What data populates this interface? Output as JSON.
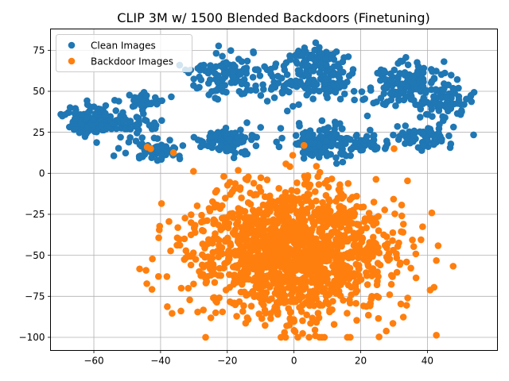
{
  "chart_data": {
    "type": "scatter",
    "title": "CLIP 3M w/ 1500 Blended Backdoors (Finetuning)",
    "xlabel": "",
    "ylabel": "",
    "xlim": [
      -73,
      61
    ],
    "ylim": [
      -108,
      88
    ],
    "x_ticks": [
      -60,
      -40,
      -20,
      0,
      20,
      40
    ],
    "y_ticks": [
      -100,
      -75,
      -50,
      -25,
      0,
      25,
      50,
      75
    ],
    "grid": true,
    "legend_position": "upper-left",
    "series": [
      {
        "name": "Clean Images",
        "color": "#1f77b4",
        "clusters": [
          {
            "cx": -60,
            "cy": 32,
            "sx": 4,
            "sy": 4.5,
            "n": 150
          },
          {
            "cx": -48,
            "cy": 30,
            "sx": 3.5,
            "sy": 3,
            "n": 40
          },
          {
            "cx": -45,
            "cy": 44,
            "sx": 3,
            "sy": 3,
            "n": 40
          },
          {
            "cx": -42,
            "cy": 14,
            "sx": 4,
            "sy": 3.5,
            "n": 60
          },
          {
            "cx": -20,
            "cy": 20,
            "sx": 4,
            "sy": 4,
            "n": 90
          },
          {
            "cx": -20,
            "cy": 60,
            "sx": 6,
            "sy": 6,
            "n": 110
          },
          {
            "cx": 0,
            "cy": 55,
            "sx": 7,
            "sy": 6,
            "n": 80
          },
          {
            "cx": 6,
            "cy": 70,
            "sx": 4,
            "sy": 4,
            "n": 70
          },
          {
            "cx": 12,
            "cy": 55,
            "sx": 3,
            "sy": 5,
            "n": 50
          },
          {
            "cx": 8,
            "cy": 20,
            "sx": 5,
            "sy": 6,
            "n": 110
          },
          {
            "cx": 20,
            "cy": 18,
            "sx": 3,
            "sy": 3,
            "n": 40
          },
          {
            "cx": 32,
            "cy": 55,
            "sx": 6,
            "sy": 7,
            "n": 130
          },
          {
            "cx": 45,
            "cy": 45,
            "sx": 4,
            "sy": 7,
            "n": 80
          },
          {
            "cx": 38,
            "cy": 22,
            "sx": 5,
            "sy": 3.5,
            "n": 70
          }
        ],
        "points": [
          [
            -10,
            28
          ],
          [
            28,
            18
          ],
          [
            -8,
            44
          ],
          [
            18,
            50
          ],
          [
            -2,
            38
          ],
          [
            -30,
            22
          ],
          [
            22,
            35
          ],
          [
            -52,
            22
          ]
        ]
      },
      {
        "name": "Backdoor Images",
        "color": "#ff7f0e",
        "clusters": [
          {
            "cx": 0,
            "cy": -48,
            "sx": 15,
            "sy": 20,
            "n": 1500
          }
        ],
        "points": [
          [
            -44,
            16
          ],
          [
            -43,
            15
          ],
          [
            3,
            17
          ],
          [
            30,
            15
          ],
          [
            -14,
            -4
          ]
        ]
      }
    ]
  }
}
